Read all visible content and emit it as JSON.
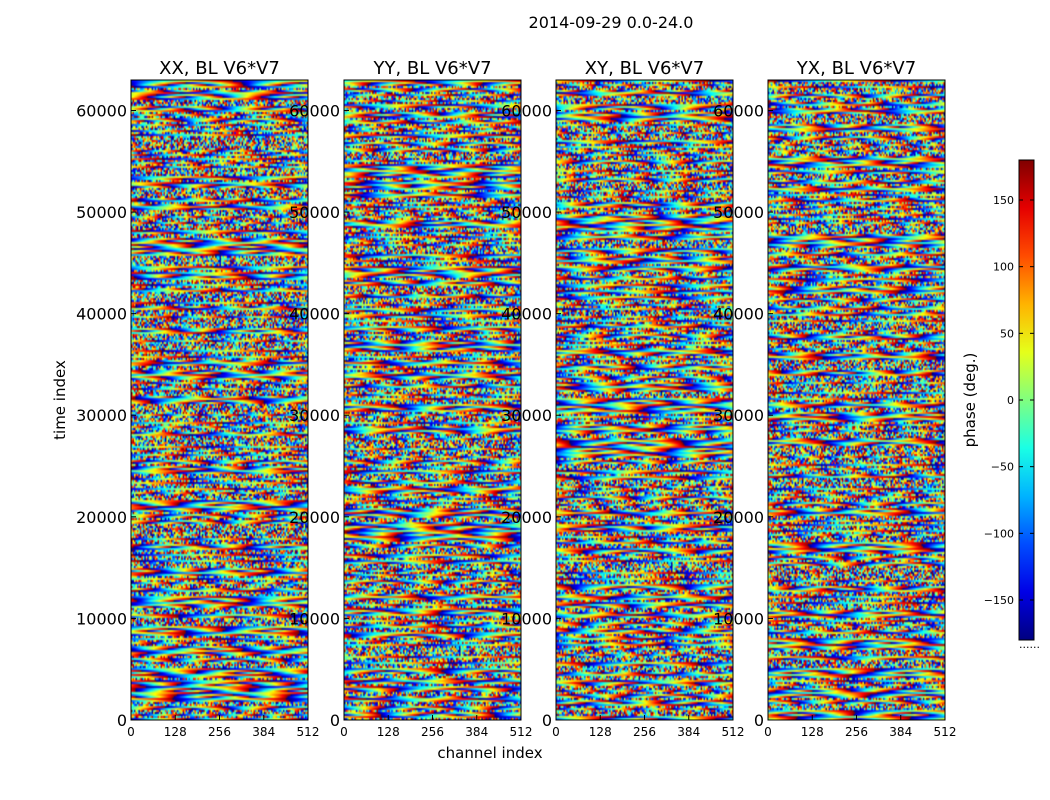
{
  "figure": {
    "suptitle": "2014-09-29 0.0-24.0"
  },
  "chart_data": {
    "type": "heatmap",
    "suptitle": "2014-09-29 0.0-24.0",
    "xlabel": "channel index",
    "ylabel": "time index",
    "xlim": [
      0,
      512
    ],
    "ylim": [
      0,
      63000
    ],
    "x_ticks": [
      "0",
      "128",
      "256",
      "384",
      "512"
    ],
    "x_tick_values": [
      0,
      128,
      256,
      384,
      512
    ],
    "y_ticks": [
      "0",
      "10000",
      "20000",
      "30000",
      "40000",
      "50000",
      "60000"
    ],
    "y_tick_values": [
      0,
      10000,
      20000,
      30000,
      40000,
      50000,
      60000
    ],
    "colormap": "jet",
    "colorbar": {
      "label": "phase (deg.)",
      "range": [
        -180,
        180
      ],
      "ticks": [
        "150",
        "100",
        "50",
        "0",
        "−50",
        "−100",
        "−150"
      ],
      "tick_values": [
        150,
        100,
        50,
        0,
        -50,
        -100,
        -150
      ],
      "footnote": "......"
    },
    "panels": [
      {
        "title": "XX, BL V6*V7"
      },
      {
        "title": "YY, BL V6*V7"
      },
      {
        "title": "XY, BL V6*V7"
      },
      {
        "title": "YX, BL V6*V7"
      }
    ]
  }
}
